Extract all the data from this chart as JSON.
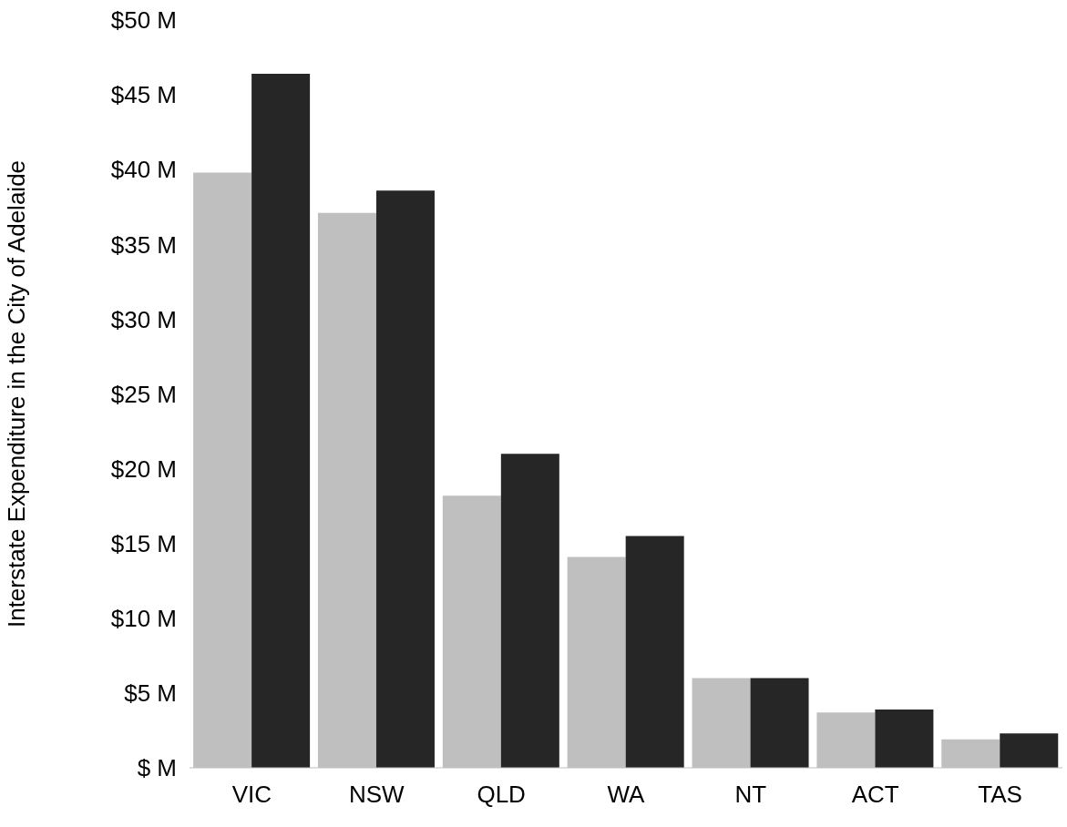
{
  "chart_data": {
    "type": "bar",
    "ylabel": "Interstate Expenditure in the City of Adelaide",
    "categories": [
      "VIC",
      "NSW",
      "QLD",
      "WA",
      "NT",
      "ACT",
      "TAS"
    ],
    "series": [
      {
        "color": "#bfbfbf",
        "values": [
          39.8,
          37.1,
          18.2,
          14.1,
          6.0,
          3.7,
          1.9
        ]
      },
      {
        "color": "#262626",
        "values": [
          46.4,
          38.6,
          21.0,
          15.5,
          6.0,
          3.9,
          2.3
        ]
      }
    ],
    "ylim": [
      0,
      50
    ],
    "yticks": [
      {
        "value": 0,
        "label": "$ M"
      },
      {
        "value": 5,
        "label": "$5 M"
      },
      {
        "value": 10,
        "label": "$10 M"
      },
      {
        "value": 15,
        "label": "$15 M"
      },
      {
        "value": 20,
        "label": "$20 M"
      },
      {
        "value": 25,
        "label": "$25 M"
      },
      {
        "value": 30,
        "label": "$30 M"
      },
      {
        "value": 35,
        "label": "$35 M"
      },
      {
        "value": 40,
        "label": "$40 M"
      },
      {
        "value": 45,
        "label": "$45 M"
      },
      {
        "value": 50,
        "label": "$50 M"
      }
    ],
    "grid": false,
    "legend": false
  }
}
